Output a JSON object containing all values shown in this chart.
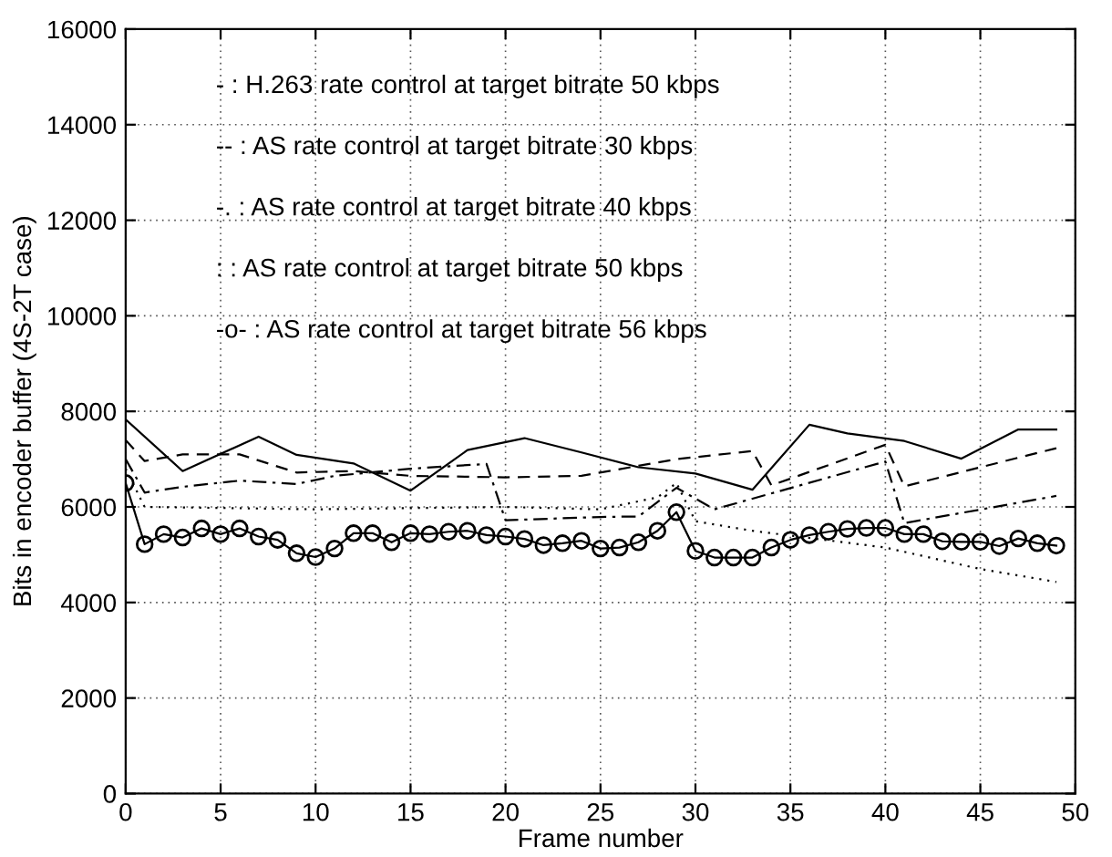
{
  "chart_data": {
    "type": "line",
    "xlabel": "Frame number",
    "ylabel": "Bits in encoder buffer (4S-2T case)",
    "xlim": [
      0,
      50
    ],
    "xticks": [
      0,
      5,
      10,
      15,
      20,
      25,
      30,
      35,
      40,
      45,
      50
    ],
    "ylim": [
      0,
      16000
    ],
    "yticks": [
      0,
      2000,
      4000,
      6000,
      8000,
      10000,
      12000,
      14000,
      16000
    ],
    "grid": true,
    "annotations": [
      "- : H.263 rate control at target bitrate 50 kbps",
      "-- : AS rate control at target bitrate 30 kbps",
      "-. : AS rate control at target bitrate 40 kbps",
      ": : AS rate control at target bitrate 50 kbps",
      "-o- : AS rate control at target bitrate 56 kbps"
    ],
    "series": [
      {
        "color": "#000000",
        "line_style": "solid",
        "marker": "none",
        "x": [
          0,
          3,
          7,
          9,
          12,
          15,
          18,
          21,
          24,
          27,
          30,
          33,
          36,
          38,
          41,
          44,
          47,
          49
        ],
        "values": [
          7830,
          6750,
          7470,
          7090,
          6910,
          6340,
          7190,
          7440,
          7140,
          6830,
          6700,
          6360,
          7720,
          7540,
          7380,
          7010,
          7620,
          7620
        ]
      },
      {
        "color": "#000000",
        "line_style": "dashed",
        "marker": "none",
        "x": [
          0,
          1,
          3,
          6,
          9,
          12,
          15,
          20,
          24,
          29,
          33,
          34,
          40,
          41,
          49
        ],
        "values": [
          7400,
          6960,
          7100,
          7100,
          6720,
          6750,
          6650,
          6620,
          6650,
          7000,
          7170,
          6450,
          7300,
          6430,
          7230
        ]
      },
      {
        "color": "#000000",
        "line_style": "dashdot",
        "marker": "none",
        "x": [
          0,
          1,
          3,
          6,
          9,
          11,
          15,
          19,
          20,
          25,
          27,
          29,
          31,
          40,
          41,
          49
        ],
        "values": [
          7000,
          6300,
          6420,
          6550,
          6480,
          6650,
          6800,
          6900,
          5720,
          5790,
          5800,
          6400,
          5950,
          6950,
          5660,
          6230
        ]
      },
      {
        "color": "#000000",
        "line_style": "dotted",
        "marker": "none",
        "x": [
          0,
          1,
          10,
          20,
          25,
          28,
          29,
          30,
          33,
          40,
          45,
          49
        ],
        "values": [
          6800,
          6000,
          5950,
          6000,
          5950,
          6200,
          6500,
          5700,
          5500,
          5150,
          4700,
          4430
        ]
      },
      {
        "color": "#000000",
        "line_style": "solid",
        "marker": "circle",
        "x": [
          0,
          1,
          2,
          3,
          4,
          5,
          6,
          7,
          8,
          9,
          10,
          11,
          12,
          13,
          14,
          15,
          16,
          17,
          18,
          19,
          20,
          21,
          22,
          23,
          24,
          25,
          26,
          27,
          28,
          29,
          30,
          31,
          32,
          33,
          34,
          35,
          36,
          37,
          38,
          39,
          40,
          41,
          42,
          43,
          44,
          45,
          46,
          47,
          48,
          49
        ],
        "values": [
          6500,
          5220,
          5430,
          5360,
          5550,
          5430,
          5550,
          5380,
          5310,
          5030,
          4950,
          5130,
          5450,
          5450,
          5260,
          5450,
          5430,
          5480,
          5500,
          5410,
          5380,
          5330,
          5200,
          5240,
          5290,
          5130,
          5150,
          5260,
          5500,
          5890,
          5080,
          4940,
          4940,
          4940,
          5150,
          5310,
          5410,
          5480,
          5540,
          5560,
          5560,
          5430,
          5430,
          5280,
          5270,
          5270,
          5180,
          5340,
          5240,
          5190
        ]
      }
    ]
  }
}
